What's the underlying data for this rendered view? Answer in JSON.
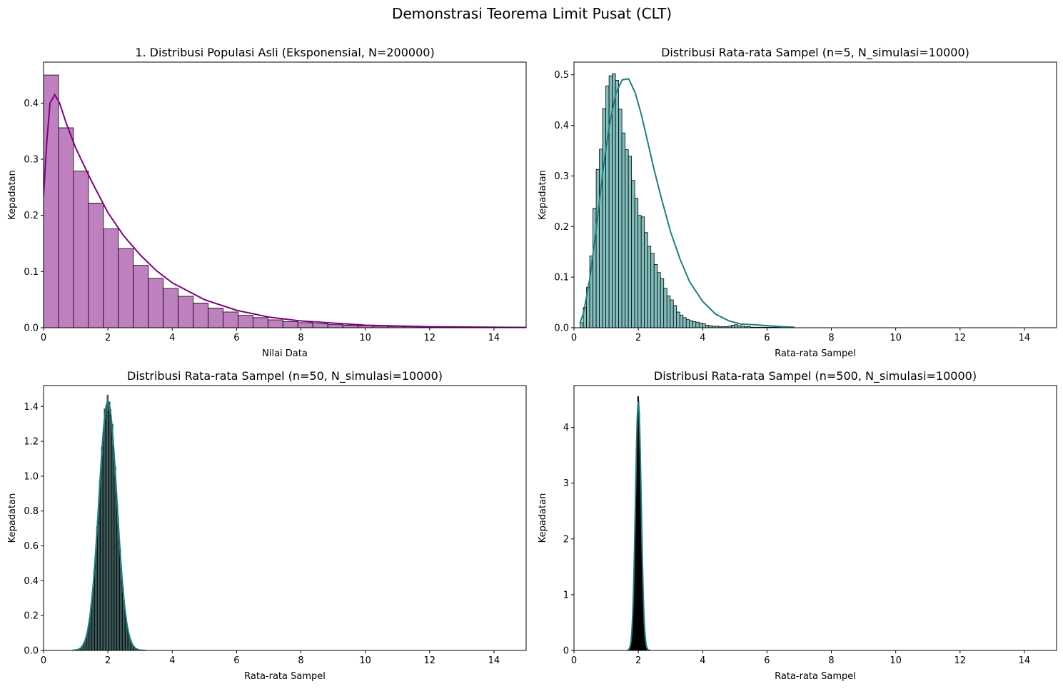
{
  "figure": {
    "suptitle": "Demonstrasi Teorema Limit Pusat (CLT)"
  },
  "chart_data": [
    {
      "type": "bar",
      "title": "1. Distribusi Populasi Asli (Eksponensial, N=200000)",
      "xlabel": "Nilai Data",
      "ylabel": "Kepadatan",
      "xlim": [
        0,
        15
      ],
      "ylim": [
        0,
        0.473
      ],
      "xticks": [
        0,
        2,
        4,
        6,
        8,
        10,
        12,
        14
      ],
      "yticks": [
        0.0,
        0.1,
        0.2,
        0.3,
        0.4
      ],
      "ytick_decimals": 1,
      "bar_color": "#bf80bf",
      "kde_color": "#800080",
      "bins": {
        "start": 0,
        "width": 0.465,
        "values": [
          0.45,
          0.356,
          0.279,
          0.222,
          0.176,
          0.141,
          0.111,
          0.088,
          0.07,
          0.056,
          0.044,
          0.035,
          0.028,
          0.022,
          0.018,
          0.014,
          0.011,
          0.009,
          0.007,
          0.0055,
          0.0045,
          0.0035,
          0.0028,
          0.0022,
          0.0017,
          0.0014,
          0.0011,
          0.0009,
          0.0007,
          0.0005,
          0.0004,
          0.0003
        ]
      },
      "kde": {
        "x": [
          0,
          0.1,
          0.2,
          0.35,
          0.5,
          0.7,
          1.0,
          1.5,
          2.0,
          2.5,
          3.0,
          3.5,
          4.0,
          5.0,
          6.0,
          7.0,
          8.0,
          10.0,
          12.0,
          15.0
        ],
        "y": [
          0.235,
          0.33,
          0.4,
          0.415,
          0.4,
          0.365,
          0.32,
          0.26,
          0.205,
          0.163,
          0.13,
          0.102,
          0.08,
          0.05,
          0.031,
          0.019,
          0.012,
          0.0045,
          0.0018,
          0.0005
        ]
      }
    },
    {
      "type": "bar",
      "title": "Distribusi Rata-rata Sampel (n=5, N_simulasi=10000)",
      "xlabel": "Rata-rata Sampel",
      "ylabel": "Kepadatan",
      "xlim": [
        0,
        15
      ],
      "ylim": [
        0,
        0.525
      ],
      "xticks": [
        0,
        2,
        4,
        6,
        8,
        10,
        12,
        14
      ],
      "yticks": [
        0.0,
        0.1,
        0.2,
        0.3,
        0.4,
        0.5
      ],
      "ytick_decimals": 1,
      "bar_color": "#80bfbd",
      "kde_color": "#1a8080",
      "bins": {
        "start": 0.19,
        "width": 0.1,
        "values": [
          0.01,
          0.04,
          0.08,
          0.142,
          0.236,
          0.313,
          0.353,
          0.433,
          0.478,
          0.498,
          0.502,
          0.489,
          0.432,
          0.385,
          0.352,
          0.339,
          0.291,
          0.256,
          0.222,
          0.219,
          0.188,
          0.161,
          0.147,
          0.125,
          0.109,
          0.097,
          0.078,
          0.063,
          0.055,
          0.044,
          0.031,
          0.025,
          0.02,
          0.016,
          0.014,
          0.012,
          0.011,
          0.009,
          0.008,
          0.005,
          0.004,
          0.003,
          0.003,
          0.002,
          0.002,
          0.002,
          0.003,
          0.005,
          0.006,
          0.004,
          0.003,
          0.002,
          0.002,
          0.001,
          0.001,
          0.001,
          0.001,
          0.001,
          0.001,
          0.001,
          0.001,
          0.001,
          0.001,
          0.001,
          0.001
        ]
      },
      "kde": {
        "x": [
          0.18,
          0.3,
          0.5,
          0.7,
          0.9,
          1.1,
          1.3,
          1.5,
          1.7,
          1.9,
          2.1,
          2.3,
          2.5,
          2.7,
          3.0,
          3.3,
          3.6,
          4.0,
          4.4,
          4.8,
          5.2,
          5.6,
          6.0,
          6.5,
          6.85
        ],
        "y": [
          0.008,
          0.03,
          0.1,
          0.2,
          0.31,
          0.4,
          0.463,
          0.49,
          0.492,
          0.465,
          0.42,
          0.365,
          0.31,
          0.26,
          0.19,
          0.135,
          0.09,
          0.052,
          0.027,
          0.014,
          0.007,
          0.006,
          0.004,
          0.002,
          0.001
        ]
      }
    },
    {
      "type": "bar",
      "title": "Distribusi Rata-rata Sampel (n=50, N_simulasi=10000)",
      "xlabel": "Rata-rata Sampel",
      "ylabel": "Kepadatan",
      "xlim": [
        0,
        15
      ],
      "ylim": [
        0,
        1.52
      ],
      "xticks": [
        0,
        2,
        4,
        6,
        8,
        10,
        12,
        14
      ],
      "yticks": [
        0.0,
        0.2,
        0.4,
        0.6,
        0.8,
        1.0,
        1.2,
        1.4
      ],
      "ytick_decimals": 1,
      "bar_color": "#80bfbd",
      "kde_color": "#1a8080",
      "normal": {
        "mean": 2.0,
        "sd": 0.28,
        "xmin": 1.05,
        "xmax": 3.2,
        "nbins": 72
      },
      "kde": {
        "mean": 2.0,
        "sd": 0.28,
        "peak": 1.43
      }
    },
    {
      "type": "bar",
      "title": "Distribusi Rata-rata Sampel (n=500, N_simulasi=10000)",
      "xlabel": "Rata-rata Sampel",
      "ylabel": "Kepadatan",
      "xlim": [
        0,
        15
      ],
      "ylim": [
        0,
        4.75
      ],
      "xticks": [
        0,
        2,
        4,
        6,
        8,
        10,
        12,
        14
      ],
      "yticks": [
        0,
        1,
        2,
        3,
        4
      ],
      "ytick_decimals": 0,
      "bar_color": "#80bfbd",
      "kde_color": "#1a8080",
      "normal": {
        "mean": 2.0,
        "sd": 0.089,
        "xmin": 1.68,
        "xmax": 2.36,
        "nbins": 70
      },
      "kde": {
        "mean": 2.0,
        "sd": 0.089,
        "peak": 4.45
      }
    }
  ]
}
